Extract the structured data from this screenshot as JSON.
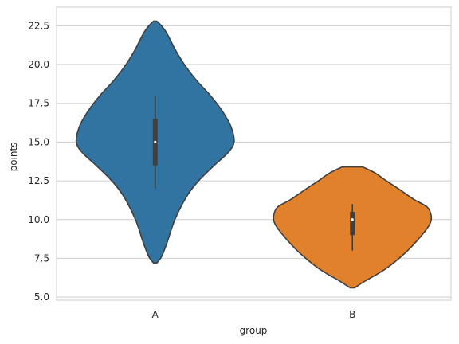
{
  "chart_data": {
    "type": "violin",
    "xlabel": "group",
    "ylabel": "points",
    "categories": [
      "A",
      "B"
    ],
    "ylim": [
      4.8,
      23.7
    ],
    "yticks": [
      5.0,
      7.5,
      10.0,
      12.5,
      15.0,
      17.5,
      20.0,
      22.5
    ],
    "ytick_labels": [
      "5.0",
      "7.5",
      "10.0",
      "12.5",
      "15.0",
      "17.5",
      "20.0",
      "22.5"
    ],
    "grid": true,
    "violins": [
      {
        "category": "A",
        "color": "#3274a1",
        "profile": [
          [
            7.2,
            0.02
          ],
          [
            7.6,
            0.08
          ],
          [
            8.5,
            0.15
          ],
          [
            10.0,
            0.25
          ],
          [
            11.5,
            0.4
          ],
          [
            12.5,
            0.55
          ],
          [
            13.5,
            0.75
          ],
          [
            14.3,
            0.92
          ],
          [
            15.0,
            1.0
          ],
          [
            16.0,
            0.96
          ],
          [
            17.0,
            0.85
          ],
          [
            18.0,
            0.7
          ],
          [
            19.0,
            0.52
          ],
          [
            20.0,
            0.37
          ],
          [
            21.0,
            0.25
          ],
          [
            22.0,
            0.15
          ],
          [
            22.5,
            0.08
          ],
          [
            22.8,
            0.02
          ]
        ],
        "whisker_low": 12.0,
        "q1": 13.5,
        "median": 15.0,
        "q3": 16.5,
        "whisker_high": 18.0
      },
      {
        "category": "B",
        "color": "#e1812c",
        "profile": [
          [
            5.6,
            0.03
          ],
          [
            6.0,
            0.15
          ],
          [
            6.5,
            0.32
          ],
          [
            7.0,
            0.47
          ],
          [
            8.0,
            0.7
          ],
          [
            9.0,
            0.88
          ],
          [
            9.7,
            0.98
          ],
          [
            10.2,
            1.0
          ],
          [
            10.8,
            0.95
          ],
          [
            11.3,
            0.78
          ],
          [
            12.0,
            0.58
          ],
          [
            12.5,
            0.43
          ],
          [
            13.0,
            0.29
          ],
          [
            13.4,
            0.13
          ]
        ],
        "whisker_low": 8.0,
        "q1": 9.0,
        "median": 10.0,
        "q3": 10.5,
        "whisker_high": 11.0
      }
    ]
  },
  "colors": {
    "edge": "#3f3f3f",
    "box": "#3f3f3f",
    "median": "#ffffff"
  }
}
